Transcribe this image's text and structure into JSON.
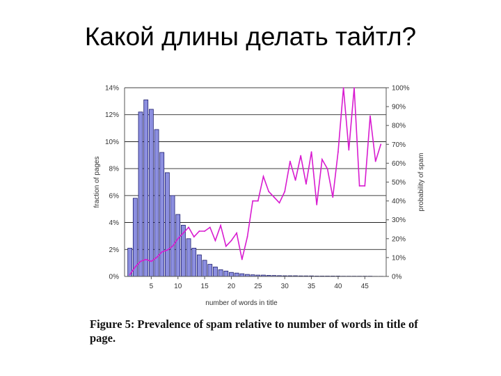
{
  "slide": {
    "title": "Какой длины делать тайтл?"
  },
  "caption": "Figure 5:  Prevalence of spam relative to number of words in title of page.",
  "colors": {
    "bars": "#8c8fe0",
    "bar_stroke": "#1e1e6e",
    "spam_line": "#d81bd0",
    "grid": "#000000"
  },
  "chart_data": {
    "type": "bar",
    "xlabel": "number of words in title",
    "ylabel": "fraction of pages",
    "ylabel_right": "probability of spam",
    "x_ticks": [
      5,
      10,
      15,
      20,
      25,
      30,
      35,
      40,
      45
    ],
    "y_ticks_left": [
      "0%",
      "2%",
      "4%",
      "6%",
      "8%",
      "10%",
      "12%",
      "14%"
    ],
    "y_ticks_right": [
      "0%",
      "10%",
      "20%",
      "30%",
      "40%",
      "50%",
      "60%",
      "70%",
      "80%",
      "90%",
      "100%"
    ],
    "ylim": [
      0,
      14
    ],
    "ylim_right": [
      0,
      100
    ],
    "xlim": [
      0,
      49
    ],
    "grid": true,
    "series": [
      {
        "axis": "left",
        "kind": "bar",
        "x": [
          1,
          2,
          3,
          4,
          5,
          6,
          7,
          8,
          9,
          10,
          11,
          12,
          13,
          14,
          15,
          16,
          17,
          18,
          19,
          20,
          21,
          22,
          23,
          24,
          25,
          26,
          27,
          28,
          29,
          30,
          31,
          32,
          33,
          34,
          35,
          36,
          37,
          38,
          39,
          40,
          41,
          42,
          43,
          44,
          45,
          46,
          47,
          48
        ],
        "values": [
          2.1,
          5.8,
          12.2,
          13.1,
          12.4,
          10.9,
          9.2,
          7.7,
          6.0,
          4.6,
          3.8,
          2.8,
          2.1,
          1.6,
          1.2,
          0.9,
          0.7,
          0.5,
          0.4,
          0.3,
          0.25,
          0.2,
          0.15,
          0.12,
          0.1,
          0.1,
          0.08,
          0.07,
          0.06,
          0.05,
          0.05,
          0.05,
          0.04,
          0.04,
          0.04,
          0.03,
          0.03,
          0.03,
          0.03,
          0.03,
          0.02,
          0.02,
          0.02,
          0.02,
          0.02,
          0.02,
          0.01,
          0.01
        ]
      },
      {
        "axis": "right",
        "kind": "line",
        "x": [
          1,
          2,
          3,
          4,
          5,
          6,
          7,
          8,
          9,
          10,
          11,
          12,
          13,
          14,
          15,
          16,
          17,
          18,
          19,
          20,
          21,
          22,
          23,
          24,
          25,
          26,
          27,
          28,
          29,
          30,
          31,
          32,
          33,
          34,
          35,
          36,
          37,
          38,
          39,
          40,
          41,
          42,
          43,
          44,
          45,
          46,
          47,
          48
        ],
        "values": [
          1,
          5,
          8,
          9,
          8,
          10,
          13,
          14,
          16,
          20,
          23,
          26,
          21,
          24,
          24,
          26,
          19,
          27,
          16,
          19,
          23,
          9,
          21,
          40,
          40,
          53,
          45,
          42,
          39,
          45,
          61,
          51,
          64,
          49,
          66,
          38,
          62,
          57,
          42,
          66,
          100,
          67,
          100,
          48,
          48,
          85,
          61,
          70
        ]
      }
    ]
  }
}
